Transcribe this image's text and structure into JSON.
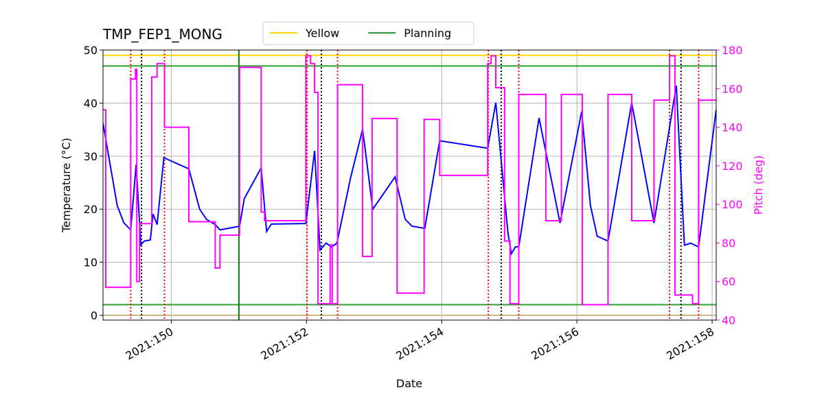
{
  "chart_data": {
    "type": "line",
    "title": "TMP_FEP1_MONG",
    "xlabel": "Date",
    "ylabel": "Temperature (°C)",
    "y2label": "Pitch (deg)",
    "y2color": "magenta",
    "xlim": [
      148.99,
      158.06
    ],
    "ylim": [
      -0.9,
      50
    ],
    "y2lim": [
      40,
      180
    ],
    "xticks": [
      {
        "value": 150,
        "label": "2021:150"
      },
      {
        "value": 152,
        "label": "2021:152"
      },
      {
        "value": 154,
        "label": "2021:154"
      },
      {
        "value": 156,
        "label": "2021:156"
      },
      {
        "value": 158,
        "label": "2021:158"
      }
    ],
    "yticks": [
      0,
      10,
      20,
      30,
      40,
      50
    ],
    "y2ticks": [
      40,
      60,
      80,
      100,
      120,
      140,
      160,
      180
    ],
    "grid": true,
    "legend": "top",
    "hlines": [
      {
        "name": "Yellow",
        "color": "gold",
        "values": [
          49
        ]
      },
      {
        "name": "Planning",
        "color": "#2ca02c",
        "values": [
          47,
          2
        ]
      },
      {
        "color": "#d2b48c",
        "values": [
          0
        ]
      }
    ],
    "vlines": [
      {
        "color": "green",
        "style": "solid",
        "x": [
          151.0
        ]
      },
      {
        "color": "red",
        "style": "dotted",
        "x": [
          149.4,
          149.9,
          152.01,
          152.46,
          154.69,
          155.14,
          157.37,
          157.8
        ]
      },
      {
        "color": "black",
        "style": "dotted",
        "x": [
          149.56,
          152.22,
          154.88,
          157.54
        ]
      }
    ],
    "series": [
      {
        "color": "blue",
        "axis": "y",
        "x": [
          148.99,
          149.2,
          149.3,
          149.4,
          149.48,
          149.55,
          149.6,
          149.69,
          149.73,
          149.79,
          149.89,
          150.26,
          150.42,
          150.52,
          150.65,
          150.72,
          151.01,
          151.08,
          151.33,
          151.41,
          151.48,
          151.99,
          152.12,
          152.2,
          152.29,
          152.37,
          152.45,
          152.65,
          152.83,
          152.98,
          153.31,
          153.46,
          153.56,
          153.75,
          153.97,
          154.68,
          154.8,
          154.98,
          155.03,
          155.09,
          155.14,
          155.44,
          155.75,
          156.07,
          156.2,
          156.3,
          156.46,
          156.81,
          157.14,
          157.47,
          157.59,
          157.68,
          157.8,
          158.06
        ],
        "values": [
          36.2,
          20.7,
          17.4,
          16.1,
          28.4,
          13.3,
          14.0,
          14.2,
          19.1,
          17.1,
          29.7,
          27.6,
          20.0,
          18.1,
          17.1,
          16.1,
          16.8,
          22.0,
          27.8,
          15.8,
          17.2,
          17.3,
          31.0,
          12.3,
          13.6,
          12.9,
          13.6,
          25.8,
          35.1,
          20.0,
          26.1,
          18.1,
          16.8,
          16.4,
          32.9,
          31.5,
          40.1,
          15.5,
          11.6,
          12.9,
          12.9,
          37.2,
          17.4,
          38.4,
          20.7,
          14.9,
          14.0,
          40.1,
          17.4,
          43.3,
          13.2,
          13.6,
          12.9,
          38.8
        ]
      },
      {
        "color": "magenta",
        "axis": "y2",
        "x": [
          148.99,
          149.03,
          149.03,
          149.4,
          149.4,
          149.47,
          149.47,
          149.49,
          149.49,
          149.53,
          149.53,
          149.71,
          149.71,
          149.79,
          149.79,
          149.9,
          149.9,
          150.26,
          150.26,
          150.65,
          150.65,
          150.72,
          150.72,
          151.01,
          151.01,
          151.33,
          151.33,
          151.38,
          151.38,
          151.99,
          151.99,
          152.06,
          152.06,
          152.12,
          152.12,
          152.17,
          152.17,
          152.35,
          152.35,
          152.38,
          152.38,
          152.46,
          152.46,
          152.83,
          152.83,
          152.97,
          152.97,
          153.34,
          153.34,
          153.74,
          153.74,
          153.97,
          153.97,
          154.68,
          154.68,
          154.73,
          154.73,
          154.8,
          154.8,
          154.93,
          154.93,
          155.01,
          155.01,
          155.14,
          155.14,
          155.54,
          155.54,
          155.77,
          155.77,
          156.08,
          156.08,
          156.46,
          156.46,
          156.81,
          156.81,
          157.14,
          157.14,
          157.37,
          157.37,
          157.45,
          157.45,
          157.71,
          157.71,
          157.8,
          157.8,
          158.06
        ],
        "values": [
          149,
          149,
          57,
          57,
          165,
          165,
          170,
          170,
          60,
          60,
          90,
          90,
          166,
          166,
          173,
          173,
          140,
          140,
          91,
          91,
          67,
          67,
          84,
          84,
          171,
          171,
          96,
          96,
          91.5,
          91.5,
          177,
          177,
          173,
          173,
          158,
          158,
          48.5,
          48.5,
          79,
          79,
          48.5,
          48.5,
          162,
          162,
          73,
          73,
          144.5,
          144.5,
          54,
          54,
          144,
          144,
          115,
          115,
          173,
          173,
          177,
          177,
          160.5,
          160.5,
          81,
          81,
          48.5,
          48.5,
          157,
          157,
          91.5,
          91.5,
          157,
          157,
          48,
          48,
          157,
          157,
          91.5,
          91.5,
          154,
          154,
          177,
          177,
          53,
          53,
          48.5,
          48.5,
          154,
          154
        ]
      }
    ]
  }
}
